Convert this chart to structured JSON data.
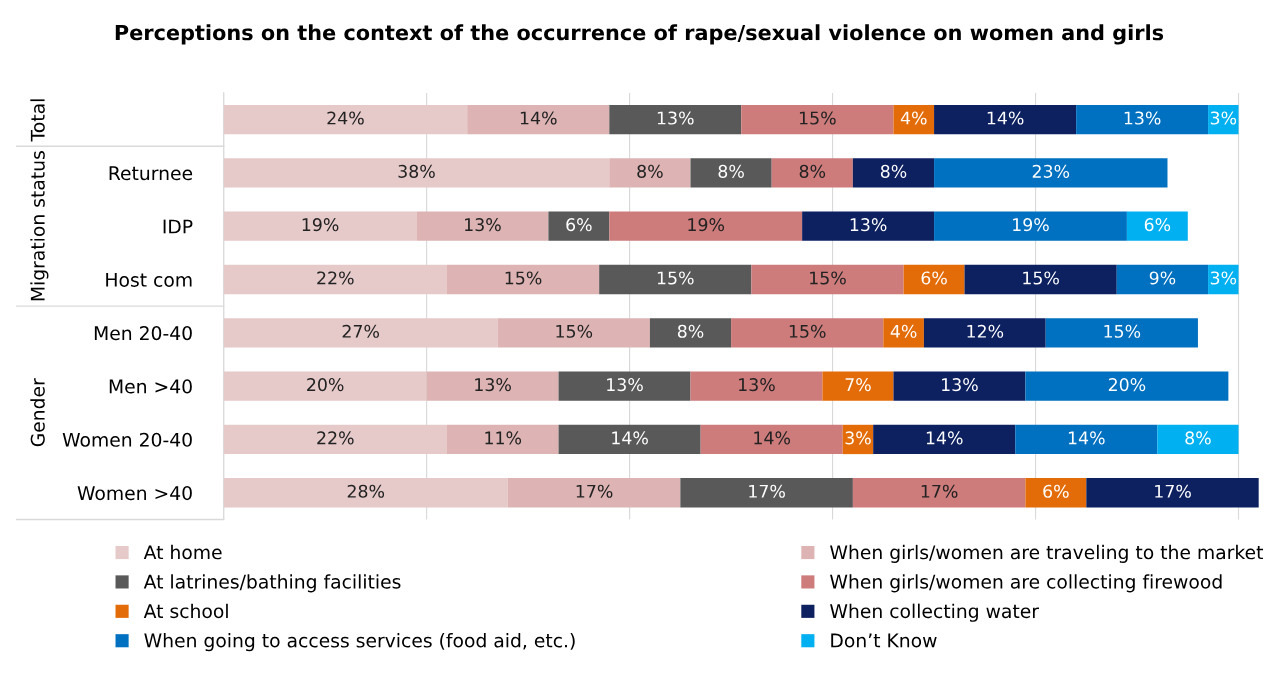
{
  "chart_data": {
    "type": "bar",
    "orientation": "horizontal",
    "stacked": true,
    "title": "Perceptions on the context of the occurrence of rape/sexual violence on women and girls",
    "categories": [
      null,
      "Returnee",
      "IDP",
      "Host com",
      "Men 20-40",
      "Men >40",
      "Women 20-40",
      "Women >40"
    ],
    "annotations": [
      "Total",
      "Migration status",
      "Gender"
    ],
    "series": [
      {
        "name": "At home",
        "color": "#e6c9c9",
        "values": [
          24,
          38,
          19,
          22,
          27,
          20,
          22,
          28
        ],
        "value_labels": [
          "24%",
          "38%",
          "19%",
          "22%",
          "27%",
          "20%",
          "22%",
          "28%"
        ]
      },
      {
        "name": "When girls/women are traveling to the market",
        "color": "#ddb3b3",
        "values": [
          14,
          8,
          13,
          15,
          15,
          13,
          11,
          17
        ],
        "value_labels": [
          "14%",
          "8%",
          "13%",
          "15%",
          "15%",
          "13%",
          "11%",
          "17%"
        ]
      },
      {
        "name": "At latrines/bathing facilities",
        "color": "#595959",
        "values": [
          13,
          8,
          6,
          15,
          8,
          13,
          14,
          17
        ],
        "value_labels": [
          "13%",
          "8%",
          "6%",
          "15%",
          "8%",
          "13%",
          "14%",
          "17%"
        ]
      },
      {
        "name": "When girls/women are collecting firewood",
        "color": "#cd7b7b",
        "values": [
          15,
          8,
          19,
          15,
          15,
          13,
          14,
          17
        ],
        "value_labels": [
          "15%",
          "8%",
          "19%",
          "15%",
          "15%",
          "13%",
          "14%",
          "17%"
        ]
      },
      {
        "name": "At school",
        "color": "#e36c09",
        "values": [
          4,
          null,
          null,
          6,
          4,
          7,
          3,
          6
        ],
        "value_labels": [
          "4%",
          null,
          null,
          "6%",
          "4%",
          "7%",
          "3%",
          "6%"
        ]
      },
      {
        "name": "When collecting water",
        "color": "#0d2060",
        "values": [
          14,
          8,
          13,
          15,
          12,
          13,
          14,
          17
        ],
        "value_labels": [
          "14%",
          "8%",
          "13%",
          "15%",
          "12%",
          "13%",
          "14%",
          "17%"
        ]
      },
      {
        "name": "When going to access services (food aid, etc.)",
        "color": "#0070c0",
        "values": [
          13,
          23,
          19,
          9,
          15,
          20,
          14,
          null
        ],
        "value_labels": [
          "13%",
          "23%",
          "19%",
          "9%",
          "15%",
          "20%",
          "14%",
          null
        ]
      },
      {
        "name": "Don’t Know",
        "color": "#00b0f0",
        "values": [
          3,
          null,
          6,
          3,
          null,
          null,
          8,
          null
        ],
        "value_labels": [
          "3%",
          null,
          "6%",
          "3%",
          null,
          null,
          "8%",
          null
        ]
      }
    ],
    "grid": "x",
    "tick_labels": "y",
    "legend": "bottom"
  }
}
